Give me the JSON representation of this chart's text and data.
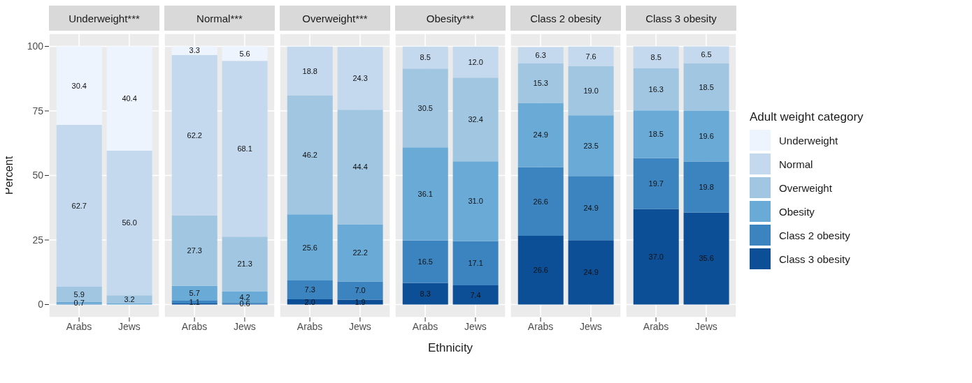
{
  "chart_data": [
    {
      "type": "bar",
      "title": "Underweight***",
      "ylabel": "Percent",
      "categories": [
        "Arabs",
        "Jews"
      ],
      "stacked": true,
      "ylim": [
        -5,
        105
      ],
      "yticks": [
        0,
        25,
        50,
        75,
        100
      ],
      "grid": true,
      "series": [
        {
          "color": "#0d4f96",
          "values": [
            null,
            null
          ],
          "value_labels": [
            null,
            null
          ]
        },
        {
          "color": "#3c84c0",
          "values": [
            0.3,
            null
          ],
          "value_labels": [
            null,
            null
          ]
        },
        {
          "color": "#6aaad6",
          "values": [
            0.7,
            0.4
          ],
          "value_labels": [
            "0.7",
            null
          ]
        },
        {
          "color": "#a0c6e2",
          "values": [
            5.9,
            3.2
          ],
          "value_labels": [
            "5.9",
            "3.2"
          ]
        },
        {
          "color": "#c4d9ee",
          "values": [
            62.7,
            56.0
          ],
          "value_labels": [
            "62.7",
            "56.0"
          ]
        },
        {
          "color": "#eef4fd",
          "values": [
            30.4,
            40.4
          ],
          "value_labels": [
            "30.4",
            "40.4"
          ]
        }
      ]
    },
    {
      "type": "bar",
      "title": "Normal***",
      "categories": [
        "Arabs",
        "Jews"
      ],
      "stacked": true,
      "ylim": [
        -5,
        105
      ],
      "yticks": [
        0,
        25,
        50,
        75,
        100
      ],
      "grid": true,
      "tick_labels": "x",
      "series": [
        {
          "color": "#0d4f96",
          "values": [
            0.4,
            0.2
          ],
          "value_labels": [
            null,
            null
          ]
        },
        {
          "color": "#3c84c0",
          "values": [
            1.1,
            0.6
          ],
          "value_labels": [
            "1.1",
            "0.6"
          ]
        },
        {
          "color": "#6aaad6",
          "values": [
            5.7,
            4.2
          ],
          "value_labels": [
            "5.7",
            "4.2"
          ]
        },
        {
          "color": "#a0c6e2",
          "values": [
            27.3,
            21.3
          ],
          "value_labels": [
            "27.3",
            "21.3"
          ]
        },
        {
          "color": "#c4d9ee",
          "values": [
            62.2,
            68.1
          ],
          "value_labels": [
            "62.2",
            "68.1"
          ]
        },
        {
          "color": "#eef4fd",
          "values": [
            3.3,
            5.6
          ],
          "value_labels": [
            "3.3",
            "5.6"
          ]
        }
      ]
    },
    {
      "type": "bar",
      "title": "Overweight***",
      "categories": [
        "Arabs",
        "Jews"
      ],
      "stacked": true,
      "ylim": [
        -5,
        105
      ],
      "yticks": [
        0,
        25,
        50,
        75,
        100
      ],
      "grid": true,
      "tick_labels": "x",
      "series": [
        {
          "color": "#0d4f96",
          "values": [
            2.0,
            1.9
          ],
          "value_labels": [
            "2.0",
            "1.9"
          ]
        },
        {
          "color": "#3c84c0",
          "values": [
            7.3,
            7.0
          ],
          "value_labels": [
            "7.3",
            "7.0"
          ]
        },
        {
          "color": "#6aaad6",
          "values": [
            25.6,
            22.2
          ],
          "value_labels": [
            "25.6",
            "22.2"
          ]
        },
        {
          "color": "#a0c6e2",
          "values": [
            46.2,
            44.4
          ],
          "value_labels": [
            "46.2",
            "44.4"
          ]
        },
        {
          "color": "#c4d9ee",
          "values": [
            18.8,
            24.3
          ],
          "value_labels": [
            "18.8",
            "24.3"
          ]
        }
      ]
    },
    {
      "type": "bar",
      "title": "Obesity***",
      "xlabel": "Ethnicity",
      "categories": [
        "Arabs",
        "Jews"
      ],
      "stacked": true,
      "ylim": [
        -5,
        105
      ],
      "yticks": [
        0,
        25,
        50,
        75,
        100
      ],
      "grid": true,
      "tick_labels": "x",
      "series": [
        {
          "color": "#0d4f96",
          "values": [
            8.3,
            7.4
          ],
          "value_labels": [
            "8.3",
            "7.4"
          ]
        },
        {
          "color": "#3c84c0",
          "values": [
            16.5,
            17.1
          ],
          "value_labels": [
            "16.5",
            "17.1"
          ]
        },
        {
          "color": "#6aaad6",
          "values": [
            36.1,
            31.0
          ],
          "value_labels": [
            "36.1",
            "31.0"
          ]
        },
        {
          "color": "#a0c6e2",
          "values": [
            30.5,
            32.4
          ],
          "value_labels": [
            "30.5",
            "32.4"
          ]
        },
        {
          "color": "#c4d9ee",
          "values": [
            8.5,
            12.0
          ],
          "value_labels": [
            "8.5",
            "12.0"
          ]
        }
      ]
    },
    {
      "type": "bar",
      "title": "Class 2 obesity",
      "categories": [
        "Arabs",
        "Jews"
      ],
      "stacked": true,
      "ylim": [
        -5,
        105
      ],
      "yticks": [
        0,
        25,
        50,
        75,
        100
      ],
      "grid": true,
      "tick_labels": "x",
      "series": [
        {
          "color": "#0d4f96",
          "values": [
            26.6,
            24.9
          ],
          "value_labels": [
            "26.6",
            "24.9"
          ]
        },
        {
          "color": "#3c84c0",
          "values": [
            26.6,
            24.9
          ],
          "value_labels": [
            "26.6",
            "24.9"
          ]
        },
        {
          "color": "#6aaad6",
          "values": [
            24.9,
            23.5
          ],
          "value_labels": [
            "24.9",
            "23.5"
          ]
        },
        {
          "color": "#a0c6e2",
          "values": [
            15.3,
            19.0
          ],
          "value_labels": [
            "15.3",
            "19.0"
          ]
        },
        {
          "color": "#c4d9ee",
          "values": [
            6.3,
            7.6
          ],
          "value_labels": [
            "6.3",
            "7.6"
          ]
        }
      ]
    },
    {
      "type": "bar",
      "title": "Class 3 obesity",
      "categories": [
        "Arabs",
        "Jews"
      ],
      "stacked": true,
      "ylim": [
        -5,
        105
      ],
      "yticks": [
        0,
        25,
        50,
        75,
        100
      ],
      "grid": true,
      "tick_labels": "x",
      "legend": "right",
      "legend_title": "Adult weight category",
      "series": [
        {
          "name": "Class 3 obesity",
          "color": "#0d4f96",
          "values": [
            37.0,
            35.6
          ],
          "value_labels": [
            "37.0",
            "35.6"
          ]
        },
        {
          "name": "Class 2 obesity",
          "color": "#3c84c0",
          "values": [
            19.7,
            19.8
          ],
          "value_labels": [
            "19.7",
            "19.8"
          ]
        },
        {
          "name": "Obesity",
          "color": "#6aaad6",
          "values": [
            18.5,
            19.6
          ],
          "value_labels": [
            "18.5",
            "19.6"
          ]
        },
        {
          "name": "Overweight",
          "color": "#a0c6e2",
          "values": [
            16.3,
            18.5
          ],
          "value_labels": [
            "16.3",
            "18.5"
          ]
        },
        {
          "name": "Normal",
          "color": "#c4d9ee",
          "values": [
            8.5,
            6.5
          ],
          "value_labels": [
            "8.5",
            "6.5"
          ]
        },
        {
          "name": "Underweight",
          "color": "#eef4fd",
          "values": [
            null,
            null
          ],
          "value_labels": [
            null,
            null
          ]
        }
      ]
    }
  ]
}
